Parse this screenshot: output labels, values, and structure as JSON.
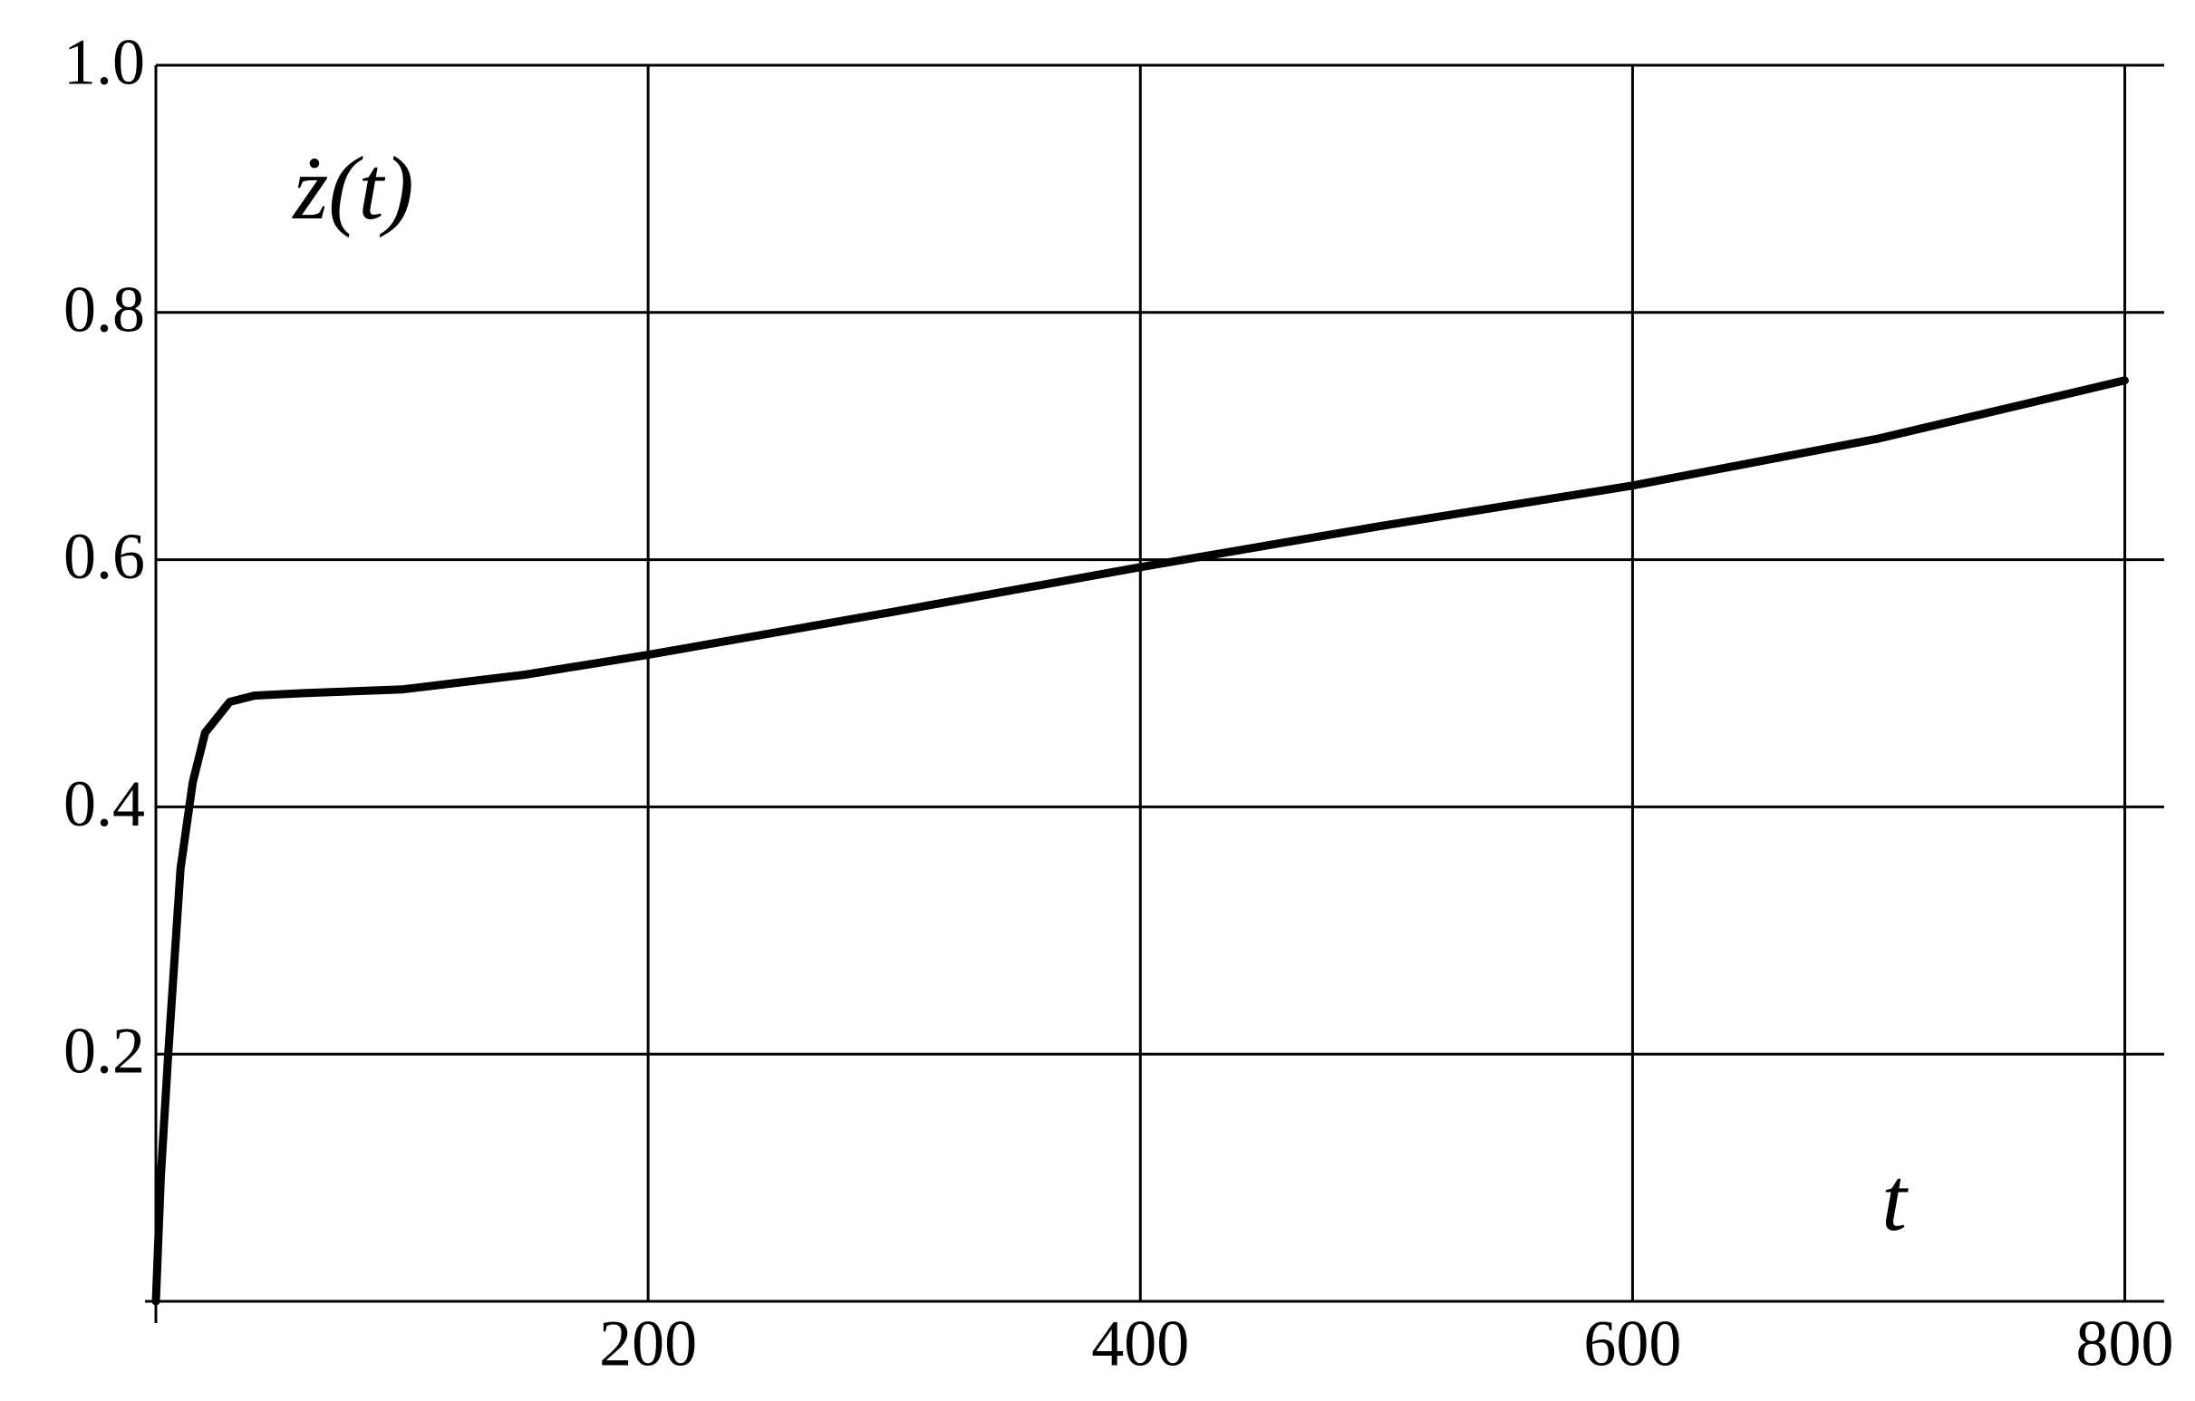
{
  "chart_data": {
    "type": "line",
    "y_label": "ż(t)",
    "x_label": "t",
    "x": [
      0,
      2,
      5,
      10,
      15,
      20,
      30,
      40,
      60,
      100,
      150,
      200,
      300,
      400,
      500,
      600,
      700,
      800
    ],
    "series": [
      {
        "name": null,
        "color": "#000000",
        "values": [
          0,
          0.1,
          0.2,
          0.35,
          0.42,
          0.46,
          0.485,
          0.49,
          0.492,
          0.495,
          0.507,
          0.523,
          0.558,
          0.594,
          0.628,
          0.66,
          0.698,
          0.745
        ]
      }
    ],
    "xlim": [
      0,
      816
    ],
    "ylim": [
      0,
      1
    ],
    "xticks": [
      200,
      400,
      600,
      800
    ],
    "yticks": [
      0.2,
      0.4,
      0.6,
      0.8,
      {
        "value": 1,
        "label": "1.0"
      }
    ],
    "grid": true
  }
}
